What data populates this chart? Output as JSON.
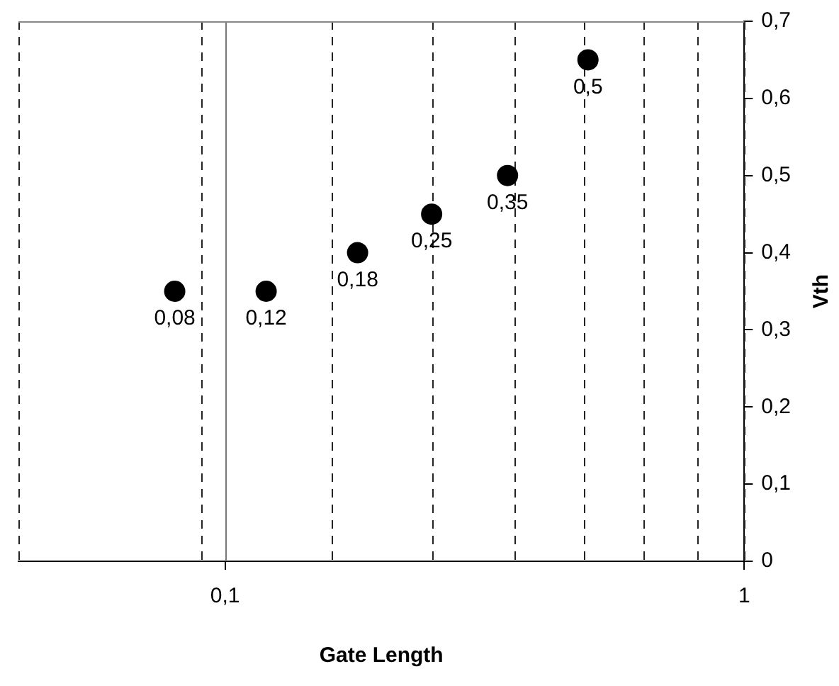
{
  "chart_data": {
    "type": "scatter",
    "xlabel": "Gate Length",
    "ylabel": "Vth",
    "x": [
      0.08,
      0.12,
      0.18,
      0.25,
      0.35,
      0.5
    ],
    "series": [
      {
        "color": "#000000",
        "values": [
          0.35,
          0.35,
          0.4,
          0.45,
          0.5,
          0.65
        ]
      }
    ],
    "annotations": [
      {
        "text": "0,08",
        "x": 0.08,
        "y": 0.35
      },
      {
        "text": "0,12",
        "x": 0.12,
        "y": 0.35
      },
      {
        "text": "0,18",
        "x": 0.18,
        "y": 0.4
      },
      {
        "text": "0,25",
        "x": 0.25,
        "y": 0.45
      },
      {
        "text": "0,35",
        "x": 0.35,
        "y": 0.5
      },
      {
        "text": "0,5",
        "x": 0.5,
        "y": 0.65
      }
    ],
    "ref_lines": [
      {
        "axis": "x",
        "value": 0.1,
        "color": "#777777"
      }
    ],
    "log": "x",
    "xlim": [
      0.04,
      1
    ],
    "xticks": [
      {
        "value": 0.04,
        "label": null
      },
      {
        "value": 0.09,
        "label": null
      },
      {
        "value": 0.1,
        "label": "0,1"
      },
      {
        "value": 0.16,
        "label": null
      },
      {
        "value": 0.25,
        "label": null
      },
      {
        "value": 0.36,
        "label": null
      },
      {
        "value": 0.49,
        "label": null
      },
      {
        "value": 0.64,
        "label": null
      },
      {
        "value": 0.81,
        "label": null
      },
      1
    ],
    "ylim": [
      0,
      0.7
    ],
    "yticks": [
      0,
      {
        "value": 0.1,
        "label": "0,1"
      },
      {
        "value": 0.2,
        "label": "0,2"
      },
      {
        "value": 0.3,
        "label": "0,3"
      },
      {
        "value": 0.4,
        "label": "0,4"
      },
      {
        "value": 0.5,
        "label": "0,5"
      },
      {
        "value": 0.6,
        "label": "0,6"
      },
      {
        "value": 0.7,
        "label": "0,7"
      }
    ],
    "grid": "x",
    "marker": "circle",
    "legend": false
  }
}
